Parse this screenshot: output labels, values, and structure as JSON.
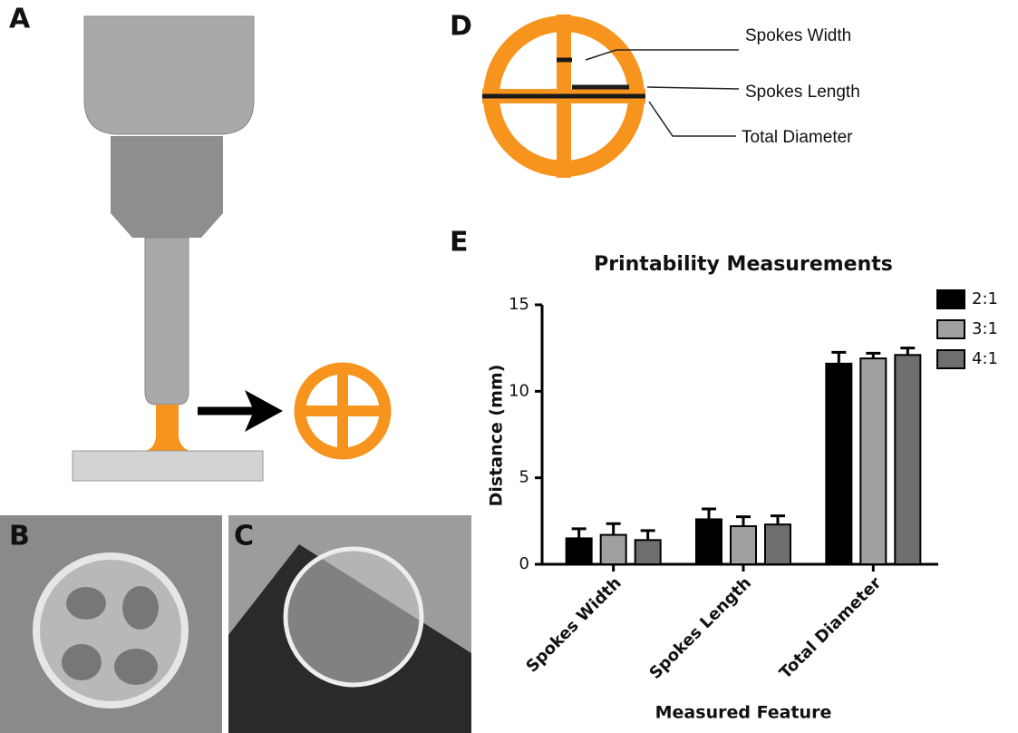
{
  "panel_labels": [
    "A",
    "B",
    "C",
    "D",
    "E"
  ],
  "diagram_d": {
    "labels": [
      "Spokes Width",
      "Spokes Length",
      "Total Diameter"
    ]
  },
  "chart_data": {
    "type": "bar",
    "title": "Printability Measurements",
    "x_label": "Measured Feature",
    "y_label": "Distance (mm)",
    "categories": [
      "Spokes Width",
      "Spokes Length",
      "Total Diameter"
    ],
    "series": [
      {
        "name": "2:1",
        "color": "#000000",
        "values": [
          1.5,
          2.6,
          11.6
        ],
        "errors": [
          0.55,
          0.6,
          0.65
        ]
      },
      {
        "name": "3:1",
        "color": "#a0a0a0",
        "values": [
          1.7,
          2.2,
          11.9
        ],
        "errors": [
          0.65,
          0.55,
          0.3
        ]
      },
      {
        "name": "4:1",
        "color": "#6e6e6e",
        "values": [
          1.4,
          2.3,
          12.1
        ],
        "errors": [
          0.55,
          0.5,
          0.4
        ]
      }
    ],
    "ylim": [
      0,
      15
    ],
    "yticks": [
      0,
      5,
      10,
      15
    ],
    "legend": "right"
  }
}
